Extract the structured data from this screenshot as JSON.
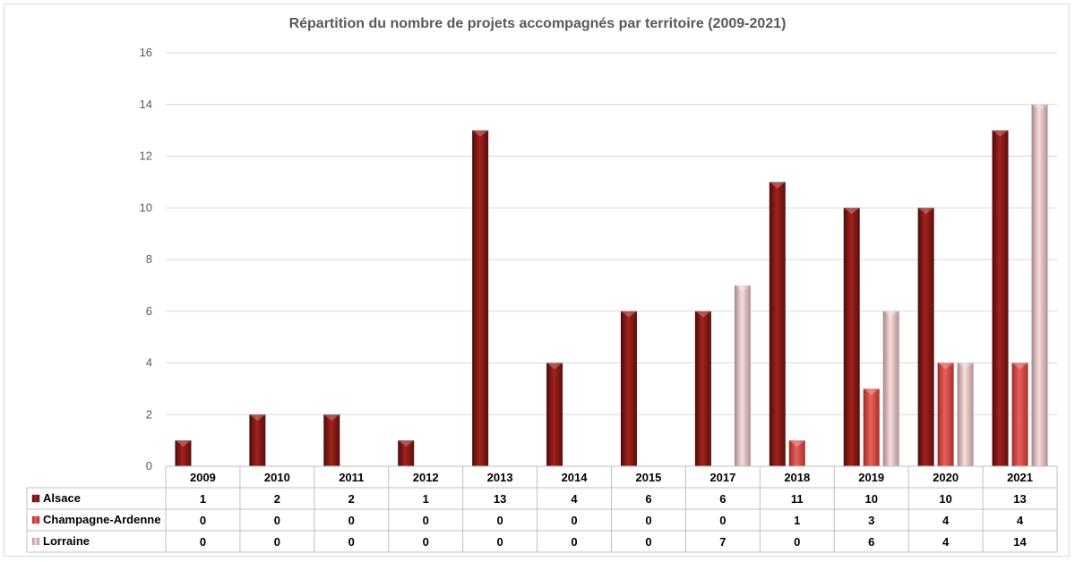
{
  "chart_data": {
    "type": "bar",
    "title": "Répartition du nombre de projets accompagnés par territoire (2009-2021)",
    "categories": [
      "2009",
      "2010",
      "2011",
      "2012",
      "2013",
      "2014",
      "2015",
      "2017",
      "2018",
      "2019",
      "2020",
      "2021"
    ],
    "series": [
      {
        "name": "Alsace",
        "values": [
          1,
          2,
          2,
          1,
          13,
          4,
          6,
          6,
          11,
          10,
          10,
          13
        ],
        "color": "#8b1a17"
      },
      {
        "name": "Champagne-Ardenne",
        "values": [
          0,
          0,
          0,
          0,
          0,
          0,
          0,
          0,
          1,
          3,
          4,
          4
        ],
        "color": "#d9534f"
      },
      {
        "name": "Lorraine",
        "values": [
          0,
          0,
          0,
          0,
          0,
          0,
          0,
          7,
          0,
          6,
          4,
          14
        ],
        "color": "#e8b9b9"
      }
    ],
    "ylim": [
      0,
      16
    ],
    "yticks": [
      0,
      2,
      4,
      6,
      8,
      10,
      12,
      14,
      16
    ],
    "grid": true,
    "legend": "data-table"
  }
}
